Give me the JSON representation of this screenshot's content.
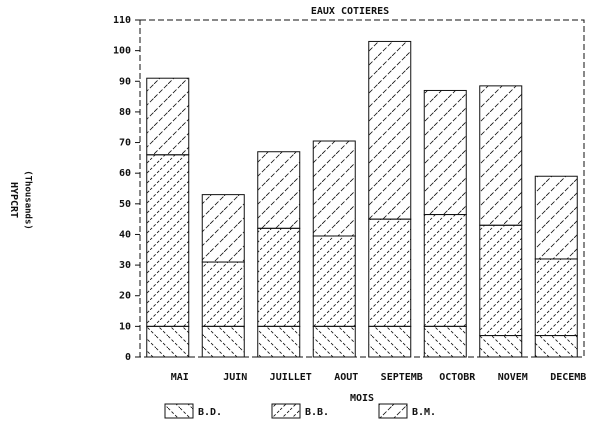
{
  "chart_data": {
    "type": "bar",
    "stacked": true,
    "title": "EAUX COTIERES",
    "xlabel": "MOIS",
    "ylabel": [
      "HYPCRT",
      "(Thousands)"
    ],
    "categories": [
      "MAI",
      "JUIN",
      "JUILLET",
      "AOUT",
      "SEPTEMB",
      "OCTOBR",
      "NOVEM",
      "DECEMB"
    ],
    "series": [
      {
        "name": "B.D.",
        "color": "#111111",
        "values": [
          10,
          10,
          10,
          10,
          10,
          10,
          7,
          7
        ]
      },
      {
        "name": "B.B.",
        "color": "#111111",
        "values": [
          56,
          21,
          32,
          29.5,
          35,
          36.5,
          36,
          25
        ]
      },
      {
        "name": "B.M.",
        "color": "#111111",
        "values": [
          25,
          22,
          25,
          31,
          58,
          40.5,
          45.5,
          27
        ]
      }
    ],
    "ylim": [
      0,
      110
    ],
    "yticks": [
      0,
      10,
      20,
      30,
      40,
      50,
      60,
      70,
      80,
      90,
      100,
      110
    ],
    "legend": "bottom"
  }
}
